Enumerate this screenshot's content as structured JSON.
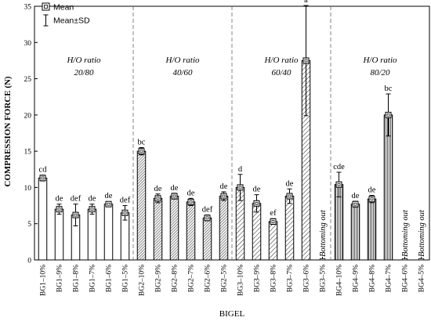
{
  "chart_data": {
    "type": "bar",
    "xlabel": "BIGEL",
    "ylabel": "COMPRESSION FORCE (N)",
    "ylim": [
      0,
      35
    ],
    "yticks": [
      0,
      5,
      10,
      15,
      20,
      25,
      30,
      35
    ],
    "grid": false,
    "legend": {
      "placement": "top-left",
      "entries": [
        "Mean",
        "Mean±SD"
      ]
    },
    "groups": [
      {
        "title_line1": "H/O ratio",
        "title_line2": "20/80",
        "pattern": "blank"
      },
      {
        "title_line1": "H/O ratio",
        "title_line2": "40/60",
        "pattern": "dense-hatch"
      },
      {
        "title_line1": "H/O ratio",
        "title_line2": "60/40",
        "pattern": "diagonal"
      },
      {
        "title_line1": "H/O ratio",
        "title_line2": "80/20",
        "pattern": "vertical"
      }
    ],
    "categories": [
      "BG1–10%",
      "BG1–9%",
      "BG1–8%",
      "BG1–7%",
      "BG1–6%",
      "BG1–5%",
      "BG2–10%",
      "BG2–9%",
      "BG2–8%",
      "BG2–7%",
      "BG2–6%",
      "BG2–5%",
      "BG3–10%",
      "BG3–9%",
      "BG3–8%",
      "BG3–7%",
      "BG3–6%",
      "BG3–5%",
      "BG4–10%",
      "BG4–9%",
      "BG4–8%",
      "BG4–7%",
      "BG4–6%",
      "BG4–5%"
    ],
    "group_index": [
      0,
      0,
      0,
      0,
      0,
      0,
      1,
      1,
      1,
      1,
      1,
      1,
      2,
      2,
      2,
      2,
      2,
      2,
      3,
      3,
      3,
      3,
      3,
      3
    ],
    "values": [
      11.3,
      7.0,
      6.2,
      7.0,
      7.7,
      6.5,
      15.0,
      8.5,
      8.8,
      8.0,
      5.8,
      8.8,
      10.0,
      7.8,
      5.3,
      8.8,
      27.5,
      null,
      10.4,
      7.7,
      8.4,
      20.0,
      null,
      null
    ],
    "sd": [
      0.4,
      0.7,
      1.5,
      0.7,
      0.3,
      1.0,
      0.5,
      0.6,
      0.4,
      0.5,
      0.4,
      0.6,
      1.8,
      1.2,
      0.4,
      1.0,
      7.6,
      null,
      1.7,
      0.4,
      0.5,
      2.9,
      null,
      null
    ],
    "letters": [
      "cd",
      "de",
      "def",
      "de",
      "de",
      "def",
      "bc",
      "de",
      "de",
      "de",
      "def",
      "de",
      "d",
      "de",
      "ef",
      "de",
      "a",
      "",
      "cde",
      "de",
      "de",
      "bc",
      "",
      ""
    ],
    "bottoming_out_text": "Bottoming out"
  }
}
